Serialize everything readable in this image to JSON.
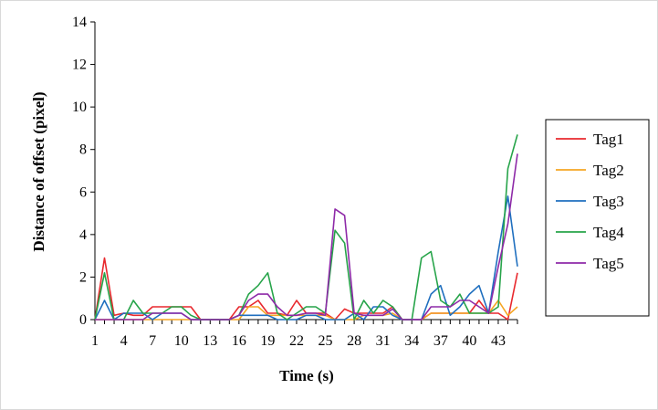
{
  "chart_data": {
    "type": "line",
    "title": "",
    "xlabel": "Time (s)",
    "ylabel": "Distance of offset (pixel)",
    "x": [
      1,
      2,
      3,
      4,
      5,
      6,
      7,
      8,
      9,
      10,
      11,
      12,
      13,
      14,
      15,
      16,
      17,
      18,
      19,
      20,
      21,
      22,
      23,
      24,
      25,
      26,
      27,
      28,
      29,
      30,
      31,
      32,
      33,
      34,
      35,
      36,
      37,
      38,
      39,
      40,
      41,
      42,
      43,
      44,
      45
    ],
    "x_tick_labels": [
      "1",
      "4",
      "7",
      "10",
      "13",
      "16",
      "19",
      "22",
      "25",
      "28",
      "31",
      "34",
      "37",
      "40",
      "43"
    ],
    "x_tick_values": [
      1,
      4,
      7,
      10,
      13,
      16,
      19,
      22,
      25,
      28,
      31,
      34,
      37,
      40,
      43
    ],
    "ylim": [
      0,
      14
    ],
    "y_ticks": [
      0,
      2,
      4,
      6,
      8,
      10,
      12,
      14
    ],
    "grid": false,
    "legend_position": "right",
    "series": [
      {
        "name": "Tag1",
        "color": "#e8292e",
        "values": [
          0,
          2.9,
          0.2,
          0.3,
          0.2,
          0.2,
          0.6,
          0.6,
          0.6,
          0.6,
          0.6,
          0,
          0,
          0,
          0,
          0.6,
          0.6,
          0.9,
          0.3,
          0.3,
          0.2,
          0.9,
          0.3,
          0.3,
          0.3,
          0,
          0.5,
          0.3,
          0.3,
          0.3,
          0.3,
          0.6,
          0,
          0,
          0,
          0.3,
          0.3,
          0.3,
          0.3,
          0.3,
          0.9,
          0.3,
          0.3,
          0,
          2.2
        ]
      },
      {
        "name": "Tag2",
        "color": "#f5a623",
        "values": [
          0,
          0,
          0,
          0,
          0,
          0,
          0,
          0,
          0,
          0,
          0,
          0,
          0,
          0,
          0,
          0,
          0.6,
          0.6,
          0.2,
          0.2,
          0.2,
          0.2,
          0.2,
          0.2,
          0.2,
          0,
          0,
          0,
          0.2,
          0.2,
          0.2,
          0.3,
          0,
          0,
          0,
          0.3,
          0.3,
          0.3,
          0.3,
          0.3,
          0.3,
          0.3,
          0.9,
          0.2,
          0.6
        ]
      },
      {
        "name": "Tag3",
        "color": "#1f6fbf",
        "values": [
          0,
          0.9,
          0,
          0.3,
          0.3,
          0.3,
          0,
          0.3,
          0.3,
          0.3,
          0,
          0,
          0,
          0,
          0,
          0.2,
          0.2,
          0.2,
          0.2,
          0,
          0,
          0,
          0.2,
          0.2,
          0,
          0,
          0,
          0.3,
          0,
          0.6,
          0.6,
          0.2,
          0,
          0,
          0,
          1.2,
          1.6,
          0.2,
          0.6,
          1.2,
          1.6,
          0.3,
          3.2,
          5.8,
          2.5
        ]
      },
      {
        "name": "Tag4",
        "color": "#27a44a",
        "values": [
          0,
          2.2,
          0,
          0,
          0.9,
          0.3,
          0.3,
          0.3,
          0.6,
          0.6,
          0.2,
          0,
          0,
          0,
          0,
          0.2,
          1.2,
          1.6,
          2.2,
          0.3,
          0,
          0.3,
          0.6,
          0.6,
          0.3,
          4.2,
          3.6,
          0,
          0.9,
          0.3,
          0.9,
          0.6,
          0,
          0,
          2.9,
          3.2,
          0.9,
          0.6,
          1.2,
          0.3,
          0.3,
          0.3,
          0.6,
          7.1,
          8.7
        ]
      },
      {
        "name": "Tag5",
        "color": "#8e2aa8",
        "values": [
          0,
          0,
          0,
          0,
          0,
          0,
          0.3,
          0.3,
          0.3,
          0.3,
          0,
          0,
          0,
          0,
          0,
          0.2,
          0.9,
          1.2,
          1.2,
          0.6,
          0.2,
          0.2,
          0.3,
          0.3,
          0.2,
          5.2,
          4.9,
          0.3,
          0.2,
          0.2,
          0.2,
          0.5,
          0,
          0,
          0,
          0.6,
          0.6,
          0.6,
          0.9,
          0.9,
          0.6,
          0.3,
          2.5,
          4.5,
          7.8
        ]
      }
    ]
  }
}
